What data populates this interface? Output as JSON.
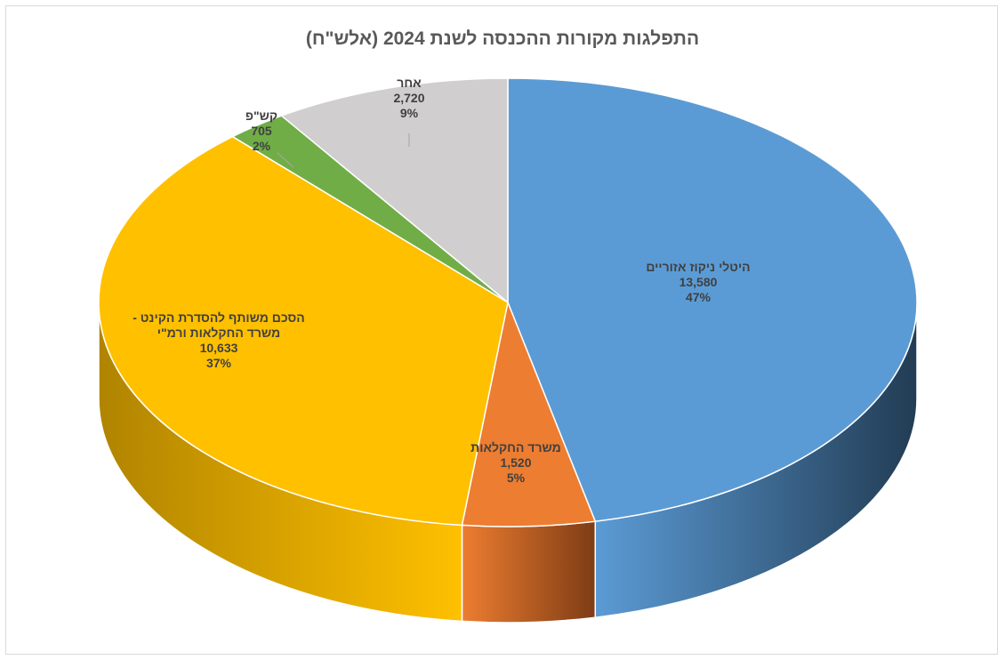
{
  "chart_data": {
    "type": "pie",
    "title": "התפלגות מקורות ההכנסה לשנת 2024 (אלש\"ח)",
    "slices": [
      {
        "name": "היטלי ניקוז אזוריים",
        "value": 13580,
        "value_label": "13,580",
        "percent_label": "47%",
        "color": "#5b9bd5",
        "side_color": "#223c54"
      },
      {
        "name": "משרד החקלאות",
        "value": 1520,
        "value_label": "1,520",
        "percent_label": "5%",
        "color": "#ed7d31",
        "side_color": "#7e3c14"
      },
      {
        "name": "הסכם משותף להסדרת הקינט - משרד החקלאות ורמ\"י",
        "name_lines": [
          "הסכם משותף להסדרת הקינט -",
          "משרד החקלאות ורמ\"י"
        ],
        "value": 10633,
        "value_label": "10,633",
        "percent_label": "37%",
        "color": "#ffc000",
        "side_color": "#b08400"
      },
      {
        "name": "קש\"פ",
        "value": 705,
        "value_label": "705",
        "percent_label": "2%",
        "color": "#70ad47",
        "side_color": "#4a7a2e"
      },
      {
        "name": "אחר",
        "value": 2720,
        "value_label": "2,720",
        "percent_label": "9%",
        "color": "#d0cece",
        "side_color": "#8f8d8d"
      }
    ],
    "legend": "none"
  }
}
